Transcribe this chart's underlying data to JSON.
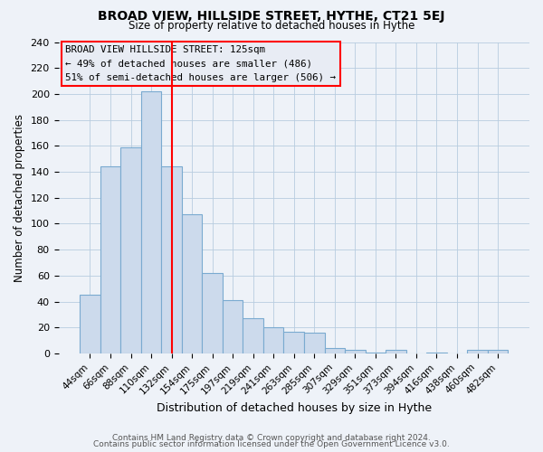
{
  "title": "BROAD VIEW, HILLSIDE STREET, HYTHE, CT21 5EJ",
  "subtitle": "Size of property relative to detached houses in Hythe",
  "xlabel": "Distribution of detached houses by size in Hythe",
  "ylabel": "Number of detached properties",
  "footer_line1": "Contains HM Land Registry data © Crown copyright and database right 2024.",
  "footer_line2": "Contains public sector information licensed under the Open Government Licence v3.0.",
  "categories": [
    "44sqm",
    "66sqm",
    "88sqm",
    "110sqm",
    "132sqm",
    "154sqm",
    "175sqm",
    "197sqm",
    "219sqm",
    "241sqm",
    "263sqm",
    "285sqm",
    "307sqm",
    "329sqm",
    "351sqm",
    "373sqm",
    "394sqm",
    "416sqm",
    "438sqm",
    "460sqm",
    "482sqm"
  ],
  "values": [
    45,
    144,
    159,
    202,
    144,
    107,
    62,
    41,
    27,
    20,
    17,
    16,
    4,
    3,
    1,
    3,
    0,
    1,
    0,
    3,
    3
  ],
  "bar_color": "#ccdaec",
  "bar_edge_color": "#7aaad0",
  "red_line_index": 4,
  "annotation_title": "BROAD VIEW HILLSIDE STREET: 125sqm",
  "annotation_line1": "← 49% of detached houses are smaller (486)",
  "annotation_line2": "51% of semi-detached houses are larger (506) →",
  "ylim": [
    0,
    240
  ],
  "yticks": [
    0,
    20,
    40,
    60,
    80,
    100,
    120,
    140,
    160,
    180,
    200,
    220,
    240
  ],
  "background_color": "#eef2f8",
  "grid_color": "#b8cce0",
  "box_facecolor": "#e8ecf4"
}
